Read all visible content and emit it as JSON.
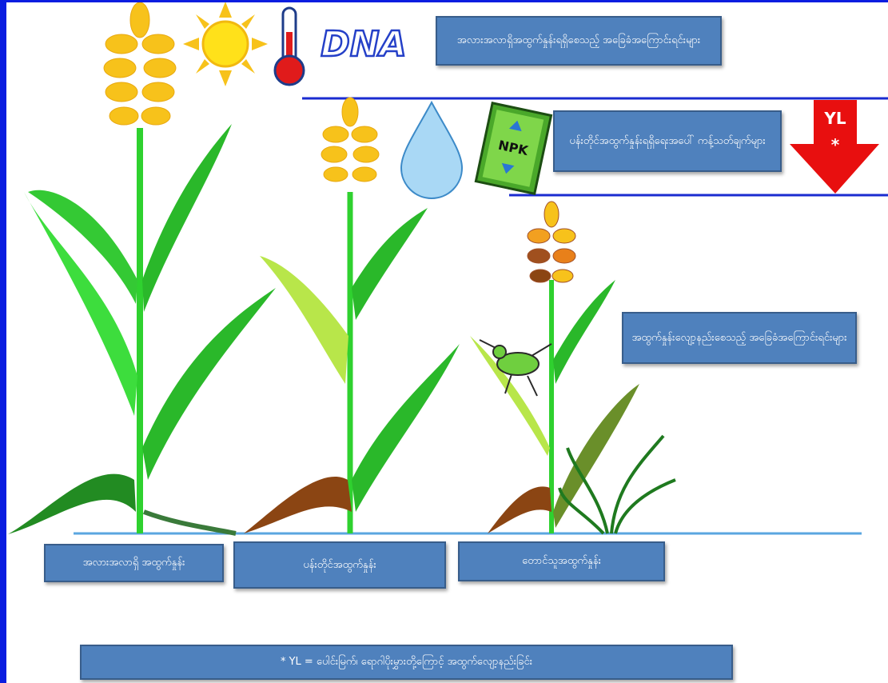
{
  "icons": {
    "dna": "DNA",
    "npk": "NPK",
    "yl": "YL",
    "yl_star": "*"
  },
  "boxes": {
    "potential_factors": "အလားအလာရှိအထွက်နှုန်းရရှိစေသည့် အခြေခံအကြောင်းရင်းများ",
    "limiting_factors": "ပန်းတိုင်အထွက်နှုန်းရရှိရေးအပေါ် ကန့်သတ်ချက်များ",
    "reducing_factors": "အထွက်နှုန်းလျော့နည်းစေသည့် အခြေခံအကြောင်းရင်းများ"
  },
  "labels": [
    "အလားအလာရှိ အထွက်နှုန်း",
    "ပန်းတိုင်အထွက်နှုန်း",
    "တောင်သူအထွက်နှုန်း"
  ],
  "footnote": "* YL = ပေါင်းမြက်၊ ရောဂါပိုးမွှားတို့ကြောင့် အထွက်လျော့နည်းခြင်း"
}
